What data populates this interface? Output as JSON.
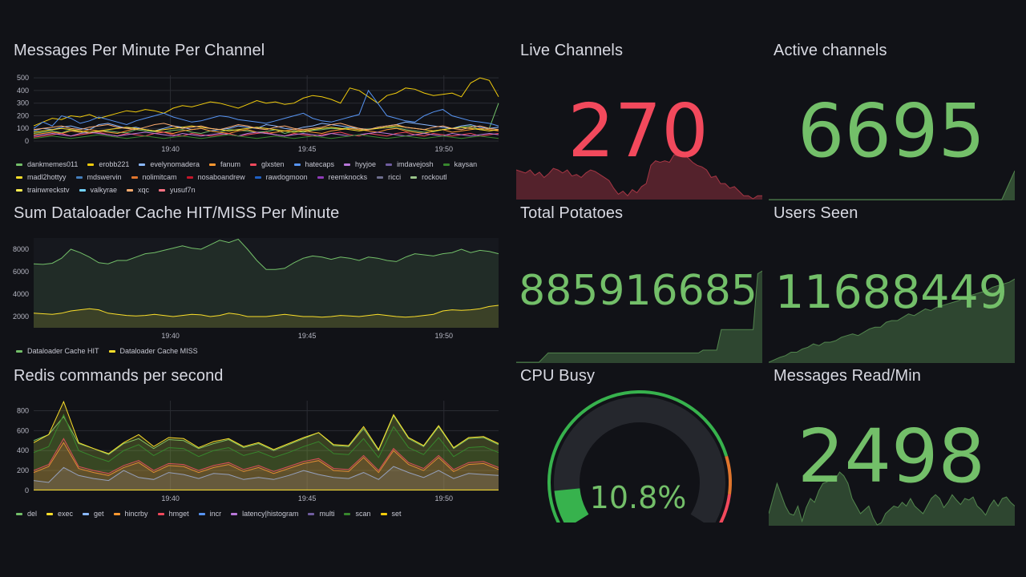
{
  "panels": {
    "messages": {
      "title": "Messages Per Minute Per Channel",
      "x_ticks": [
        "19:40",
        "19:45",
        "19:50"
      ],
      "y_ticks": [
        "500",
        "400",
        "300",
        "200",
        "100",
        "0"
      ],
      "legend": [
        "dankmemes011",
        "erobb221",
        "evelynomadera",
        "fanum",
        "glxsten",
        "hatecaps",
        "hyyjoe",
        "imdavejosh",
        "kaysan",
        "madl2hottyy",
        "mdswervin",
        "nolimitcam",
        "nosaboandrew",
        "rawdogmoon",
        "reemknocks",
        "ricci",
        "rockoutl",
        "trainwreckstv",
        "valkyrae",
        "xqc",
        "yusuf7n"
      ]
    },
    "dataloader": {
      "title": "Sum Dataloader Cache HIT/MISS Per Minute",
      "x_ticks": [
        "19:40",
        "19:45",
        "19:50"
      ],
      "y_ticks": [
        "8000",
        "6000",
        "4000",
        "2000"
      ],
      "legend": [
        "Dataloader Cache HIT",
        "Dataloader Cache MISS"
      ]
    },
    "redis": {
      "title": "Redis commands per second",
      "x_ticks": [
        "19:40",
        "19:45",
        "19:50"
      ],
      "y_ticks": [
        "800",
        "600",
        "400",
        "200",
        "0"
      ],
      "legend": [
        "del",
        "exec",
        "get",
        "hincrby",
        "hmget",
        "incr",
        "latency|histogram",
        "multi",
        "scan",
        "set"
      ]
    },
    "live_channels": {
      "title": "Live Channels",
      "value": "270",
      "color": "#f2495c"
    },
    "active_channels": {
      "title": "Active channels",
      "value": "6695",
      "color": "#73bf69"
    },
    "total_potatoes": {
      "title": "Total Potatoes",
      "value": "885916685",
      "color": "#73bf69"
    },
    "users_seen": {
      "title": "Users Seen",
      "value": "11688449",
      "color": "#73bf69"
    },
    "cpu_busy": {
      "title": "CPU Busy",
      "value": "10.8%",
      "color": "#73bf69",
      "percent": 10.8
    },
    "messages_read": {
      "title": "Messages Read/Min",
      "value": "2498",
      "color": "#73bf69"
    }
  },
  "chart_data": [
    {
      "type": "line",
      "title": "Messages Per Minute Per Channel",
      "ylim": [
        0,
        520
      ],
      "x_range": [
        "19:35",
        "19:52"
      ],
      "series": [
        {
          "name": "dankmemes011",
          "color": "#73bf69",
          "values": [
            60,
            70,
            80,
            65,
            90,
            70,
            60,
            75,
            80,
            70,
            65,
            90,
            80,
            75,
            70,
            85,
            90,
            70,
            60,
            80,
            70,
            90,
            85,
            80,
            70,
            75,
            90,
            60,
            80,
            70,
            85,
            90,
            100,
            95,
            110,
            90,
            95,
            100,
            110,
            105,
            90,
            80,
            70,
            75,
            90,
            100,
            110,
            120,
            90,
            100,
            300
          ]
        },
        {
          "name": "erobb221",
          "color": "#f2cc0c",
          "values": [
            120,
            150,
            180,
            170,
            200,
            190,
            210,
            180,
            200,
            220,
            240,
            230,
            250,
            240,
            220,
            260,
            280,
            270,
            290,
            310,
            300,
            280,
            260,
            290,
            320,
            300,
            310,
            290,
            300,
            340,
            360,
            350,
            330,
            300,
            420,
            400,
            350,
            300,
            360,
            380,
            420,
            410,
            380,
            360,
            370,
            380,
            350,
            460,
            500,
            480,
            350
          ]
        },
        {
          "name": "evelynomadera",
          "color": "#8ab8ff",
          "values": [
            80,
            100,
            90,
            110,
            120,
            100,
            90,
            130,
            140,
            120,
            100,
            110,
            90,
            80,
            100,
            120,
            110,
            90,
            100,
            80,
            90,
            100,
            120,
            110,
            100,
            130,
            120,
            100,
            90,
            110,
            120,
            140,
            130,
            120,
            110,
            100,
            90,
            110,
            120,
            130,
            150,
            140,
            130,
            120,
            110,
            100,
            120,
            130,
            110,
            100,
            110
          ]
        },
        {
          "name": "fanum",
          "color": "#ff9830",
          "values": [
            50,
            60,
            70,
            60,
            80,
            70,
            90,
            80,
            70,
            60,
            80,
            100,
            90,
            80,
            70,
            60,
            80,
            90,
            100,
            80,
            70,
            60,
            80,
            90,
            70,
            60,
            70,
            80,
            90,
            80,
            70,
            60,
            80,
            90,
            100,
            90,
            80,
            70,
            90,
            100,
            80,
            70,
            60,
            80,
            90,
            70,
            80,
            90,
            100,
            90,
            80
          ]
        },
        {
          "name": "glxsten",
          "color": "#f2495c",
          "values": [
            30,
            40,
            50,
            60,
            40,
            50,
            60,
            70,
            50,
            40,
            60,
            50,
            40,
            60,
            70,
            50,
            40,
            60,
            50,
            40,
            50,
            60,
            40,
            50,
            60,
            70,
            50,
            40,
            60,
            50,
            40,
            50,
            60,
            70,
            50,
            40,
            60,
            50,
            40,
            60,
            70,
            50,
            40,
            60,
            50,
            40,
            50,
            60,
            40,
            50,
            60
          ]
        },
        {
          "name": "hatecaps",
          "color": "#5794f2",
          "values": [
            100,
            150,
            120,
            200,
            180,
            140,
            160,
            190,
            170,
            150,
            130,
            160,
            180,
            200,
            220,
            190,
            170,
            150,
            160,
            180,
            200,
            190,
            170,
            160,
            150,
            140,
            160,
            180,
            200,
            220,
            180,
            160,
            150,
            170,
            190,
            210,
            400,
            300,
            200,
            180,
            160,
            150,
            200,
            230,
            250,
            200,
            180,
            160,
            150,
            140,
            120
          ]
        },
        {
          "name": "hyyjoe",
          "color": "#b877d9",
          "values": [
            40,
            50,
            60,
            50,
            40,
            60,
            70,
            60,
            50,
            40,
            50,
            60,
            70,
            60,
            50,
            40,
            60,
            50,
            40,
            50,
            60,
            50,
            40,
            60,
            70,
            60,
            50,
            40,
            50,
            60,
            50,
            40,
            60,
            50,
            40,
            50,
            60,
            70,
            60,
            50,
            40,
            50,
            60,
            50,
            40,
            60,
            50,
            40,
            50,
            60,
            50
          ]
        },
        {
          "name": "kaysan",
          "color": "#37872d",
          "values": [
            20,
            30,
            40,
            30,
            20,
            30,
            40,
            50,
            40,
            30,
            20,
            30,
            40,
            30,
            20,
            30,
            40,
            30,
            20,
            30,
            40,
            50,
            40,
            30,
            20,
            30,
            40,
            30,
            20,
            30,
            40,
            30,
            20,
            30,
            40,
            50,
            40,
            30,
            20,
            30,
            40,
            30,
            20,
            30,
            40,
            30,
            20,
            30,
            40,
            30,
            20
          ]
        },
        {
          "name": "nolimitcam",
          "color": "#fade2a",
          "values": [
            70,
            80,
            90,
            100,
            90,
            80,
            70,
            80,
            90,
            100,
            110,
            100,
            90,
            80,
            90,
            100,
            110,
            120,
            110,
            100,
            90,
            80,
            90,
            100,
            110,
            100,
            90,
            80,
            70,
            80,
            90,
            100,
            110,
            100,
            90,
            80,
            90,
            100,
            110,
            120,
            110,
            100,
            90,
            80,
            90,
            100,
            110,
            100,
            90,
            80,
            90
          ]
        },
        {
          "name": "xqc",
          "color": "#fcab6f",
          "values": [
            90,
            100,
            110,
            120,
            100,
            90,
            110,
            120,
            130,
            110,
            100,
            90,
            110,
            130,
            140,
            120,
            100,
            110,
            120,
            100,
            90,
            110,
            130,
            120,
            100,
            90,
            110,
            120,
            100,
            90,
            100,
            110,
            130,
            140,
            120,
            100,
            90,
            110,
            120,
            130,
            110,
            100,
            90,
            110,
            120,
            100,
            90,
            110,
            120,
            100,
            90
          ]
        }
      ]
    },
    {
      "type": "area",
      "title": "Sum Dataloader Cache HIT/MISS Per Minute",
      "ylim": [
        1000,
        9000
      ],
      "x_range": [
        "19:35",
        "19:52"
      ],
      "series": [
        {
          "name": "Dataloader Cache HIT",
          "color": "#73bf69",
          "values": [
            6700,
            6650,
            6750,
            7200,
            8000,
            7700,
            7300,
            6800,
            6700,
            7000,
            7000,
            7300,
            7600,
            7700,
            7900,
            8100,
            8300,
            8100,
            8000,
            8400,
            8800,
            8600,
            8900,
            8000,
            7000,
            6200,
            6200,
            6300,
            6800,
            7200,
            7400,
            7300,
            7100,
            7300,
            7200,
            7000,
            7300,
            7200,
            7000,
            6900,
            7300,
            7600,
            7500,
            7400,
            7600,
            7700,
            8000,
            7700,
            7900,
            7800,
            7600
          ]
        },
        {
          "name": "Dataloader Cache MISS",
          "color": "#fade2a",
          "values": [
            2300,
            2250,
            2200,
            2300,
            2500,
            2600,
            2700,
            2600,
            2300,
            2200,
            2100,
            2050,
            2100,
            2200,
            2100,
            2000,
            2100,
            2200,
            2150,
            2000,
            2100,
            2300,
            2200,
            2000,
            2000,
            2000,
            2100,
            2200,
            2100,
            2000,
            2000,
            1950,
            2000,
            2100,
            2050,
            2000,
            2100,
            2200,
            2100,
            2000,
            1950,
            2000,
            2100,
            2200,
            2500,
            2600,
            2550,
            2600,
            2700,
            2900,
            3000
          ]
        }
      ]
    },
    {
      "type": "area",
      "title": "Redis commands per second",
      "ylim": [
        0,
        900
      ],
      "x_range": [
        "19:35",
        "19:52"
      ],
      "series": [
        {
          "name": "del",
          "color": "#73bf69",
          "values": [
            500,
            560,
            740,
            470,
            420,
            360,
            470,
            520,
            420,
            510,
            500,
            420,
            470,
            510,
            430,
            470,
            400,
            460,
            520,
            580,
            450,
            440,
            620,
            400,
            750,
            520,
            440,
            640,
            420,
            520,
            530,
            460
          ]
        },
        {
          "name": "exec",
          "color": "#fade2a",
          "values": [
            480,
            560,
            890,
            480,
            420,
            370,
            480,
            560,
            440,
            530,
            520,
            430,
            490,
            520,
            440,
            480,
            410,
            470,
            530,
            580,
            460,
            450,
            640,
            410,
            760,
            530,
            450,
            650,
            430,
            530,
            540,
            470
          ]
        },
        {
          "name": "get",
          "color": "#8ab8ff",
          "values": [
            100,
            80,
            230,
            150,
            120,
            100,
            200,
            130,
            110,
            180,
            160,
            120,
            170,
            160,
            110,
            130,
            110,
            150,
            200,
            160,
            130,
            120,
            180,
            110,
            240,
            180,
            130,
            200,
            120,
            170,
            160,
            150
          ]
        },
        {
          "name": "hincrby",
          "color": "#ff9830",
          "values": [
            180,
            240,
            480,
            220,
            180,
            150,
            230,
            280,
            180,
            250,
            240,
            180,
            230,
            260,
            190,
            230,
            170,
            220,
            270,
            300,
            200,
            190,
            330,
            180,
            400,
            260,
            200,
            330,
            190,
            260,
            270,
            210
          ]
        },
        {
          "name": "hmget",
          "color": "#f2495c",
          "values": [
            200,
            260,
            520,
            240,
            200,
            170,
            250,
            300,
            200,
            270,
            260,
            200,
            250,
            280,
            210,
            250,
            190,
            240,
            290,
            320,
            220,
            210,
            350,
            200,
            420,
            280,
            220,
            350,
            210,
            280,
            290,
            230
          ]
        },
        {
          "name": "scan",
          "color": "#37872d",
          "values": [
            380,
            440,
            760,
            400,
            340,
            290,
            400,
            460,
            350,
            430,
            420,
            340,
            400,
            430,
            350,
            390,
            330,
            380,
            440,
            490,
            370,
            360,
            520,
            330,
            640,
            430,
            360,
            530,
            340,
            430,
            440,
            380
          ]
        },
        {
          "name": "set",
          "color": "#fade2a",
          "values": [
            5,
            5,
            5,
            5,
            5,
            5,
            5,
            5,
            5,
            5,
            5,
            5,
            5,
            5,
            5,
            5,
            5,
            5,
            5,
            5,
            5,
            5,
            5,
            5,
            5,
            5,
            5,
            5,
            5,
            5,
            5,
            5
          ]
        }
      ]
    }
  ]
}
